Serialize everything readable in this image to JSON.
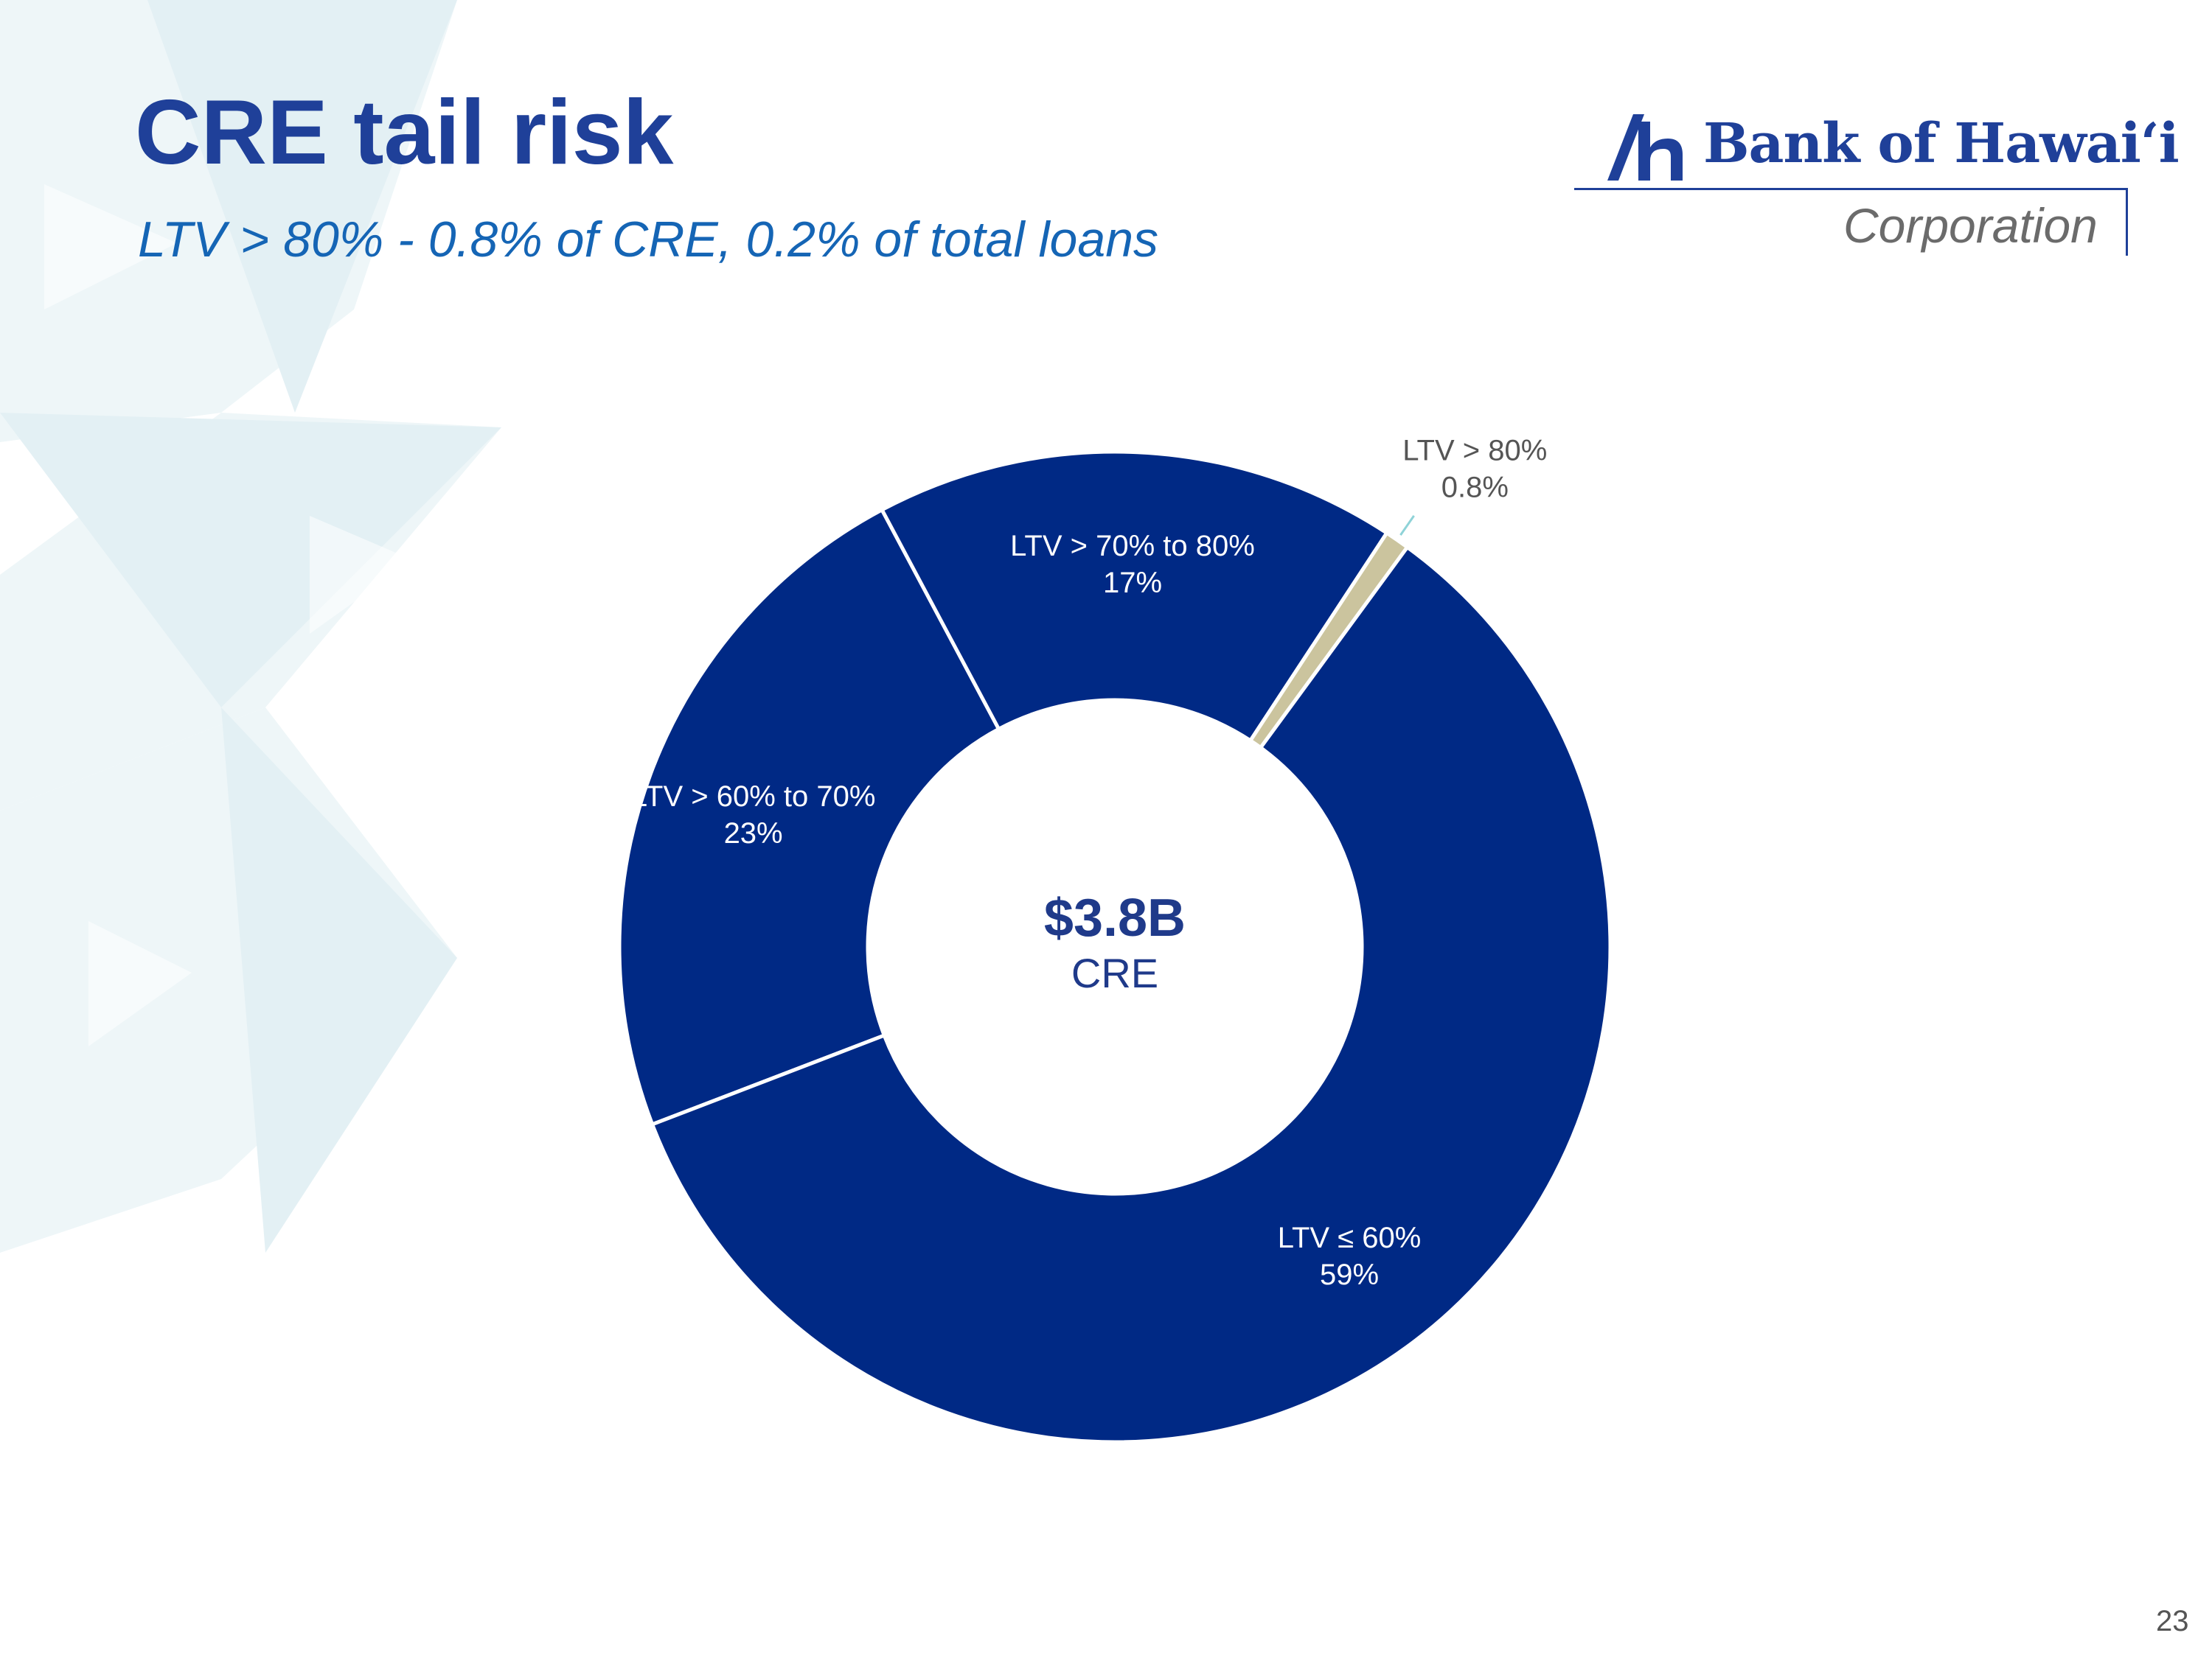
{
  "title": "CRE tail risk",
  "subtitle": "LTV > 80% - 0.8% of CRE, 0.2% of total loans",
  "logo": {
    "name": "Bank of Hawaiʻi",
    "tagline": "Corporation"
  },
  "page_number": "23",
  "chart_data": {
    "type": "pie",
    "donut": true,
    "center_value": "$3.8B",
    "center_label": "CRE",
    "slices": [
      {
        "label": "LTV > 60% to 70%",
        "value_label": "23%",
        "value": 23.0,
        "color": "#002985"
      },
      {
        "label": "LTV > 70% to 80%",
        "value_label": "17%",
        "value": 17.0,
        "color": "#002985"
      },
      {
        "label": "LTV > 80%",
        "value_label": "0.8%",
        "value": 0.8,
        "color": "#cbc49e"
      },
      {
        "label": "LTV ≤ 60%",
        "value_label": "59%",
        "value": 59.0,
        "color": "#002985"
      }
    ]
  },
  "colors": {
    "title": "#1f4099",
    "subtitle": "#1565b5",
    "slice_primary": "#002985",
    "slice_accent": "#cbc49e",
    "leader_line": "#8fd3d8",
    "outside_label": "#555555"
  }
}
